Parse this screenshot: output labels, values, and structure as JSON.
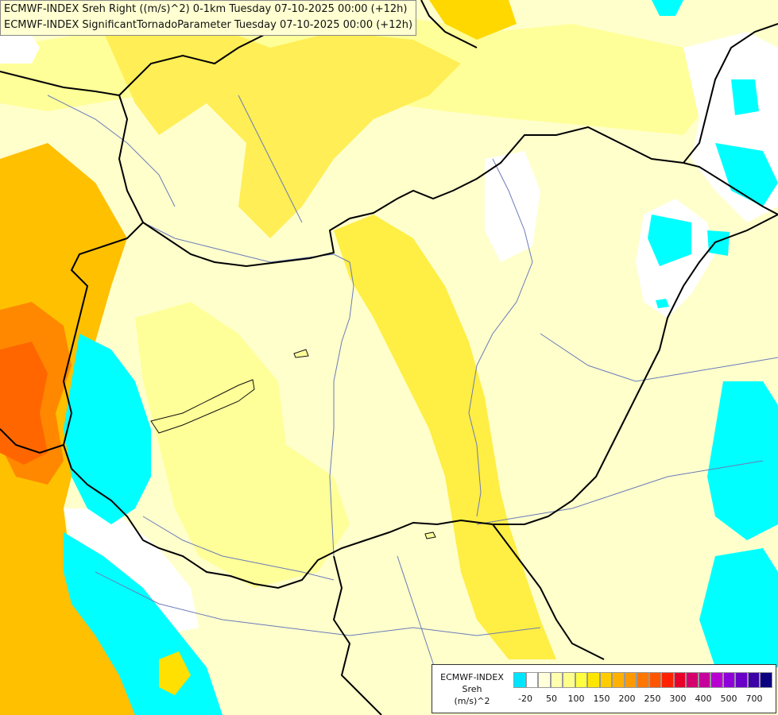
{
  "header": {
    "line1": "ECMWF-INDEX Sreh Right ((m/s)^2) 0-1km Tuesday 07-10-2025 00:00 (+12h)",
    "line2": "ECMWF-INDEX SignificantTornadoParameter Tuesday 07-10-2025 00:00 (+12h)"
  },
  "legend": {
    "title1": "ECMWF-INDEX",
    "title2": "Sreh",
    "unit": "(m/s)^2",
    "colors": [
      "#00e5ff",
      "#ffffff",
      "#ffffd9",
      "#ffffb0",
      "#ffff8c",
      "#ffff40",
      "#ffe600",
      "#ffcc00",
      "#ffb000",
      "#ff9900",
      "#ff7700",
      "#ff5500",
      "#ff2200",
      "#e8002a",
      "#d4006e",
      "#c6009c",
      "#b800d2",
      "#8e00d9",
      "#6a00c8",
      "#3b00a8",
      "#0a0080"
    ],
    "tick_labels": [
      "-20",
      "50",
      "100",
      "150",
      "200",
      "250",
      "300",
      "400",
      "500",
      "700"
    ]
  }
}
